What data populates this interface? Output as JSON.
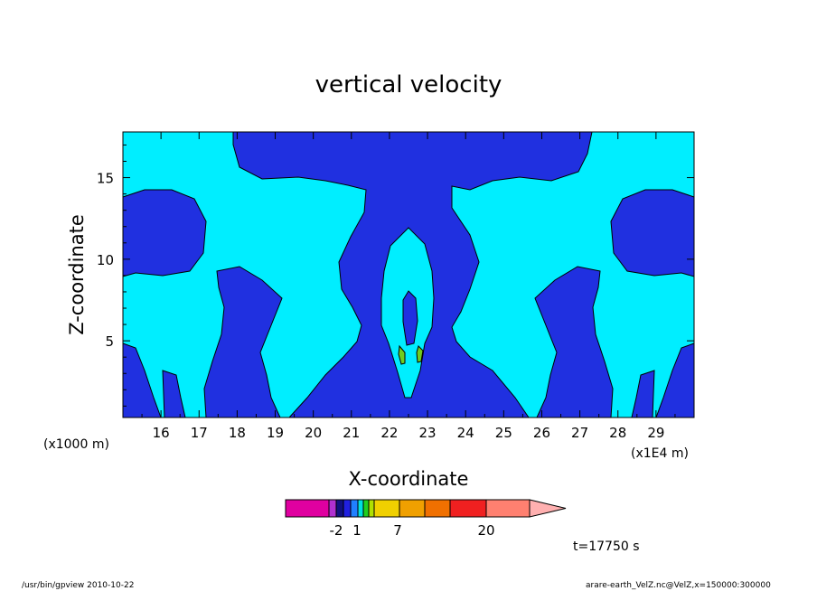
{
  "chart_data": {
    "type": "heatmap",
    "title": "vertical velocity",
    "xlabel": "X-coordinate",
    "ylabel": "Z-coordinate",
    "x_unit_left": "(x1000 m)",
    "x_unit_right": "(x1E4 m)",
    "x_ticks": [
      "16",
      "17",
      "18",
      "19",
      "20",
      "21",
      "22",
      "23",
      "24",
      "25",
      "26",
      "27",
      "28",
      "29"
    ],
    "y_ticks": [
      "5",
      "10",
      "15"
    ],
    "xlim": [
      15,
      30
    ],
    "ylim": [
      0.3,
      17.8
    ],
    "time_label": "t=17750 s",
    "colorbar": {
      "colors": [
        "#e000a0",
        "#b030d0",
        "#101080",
        "#2020e0",
        "#2080ff",
        "#00e0e0",
        "#20d020",
        "#b0e000",
        "#f0d000",
        "#f0a000",
        "#f07000",
        "#f02020",
        "#ff8070",
        "#ffb0b0"
      ],
      "tick_labels": [
        "-2",
        "1",
        "7",
        "20"
      ]
    },
    "colors": {
      "background_field": "#00eeff",
      "negative_region": "#2030e0",
      "positive_region": "#70cc20"
    }
  },
  "footer": {
    "left": "/usr/bin/gpview   2010-10-22",
    "right": "arare-earth_VelZ.nc@VelZ,x=150000:300000"
  }
}
